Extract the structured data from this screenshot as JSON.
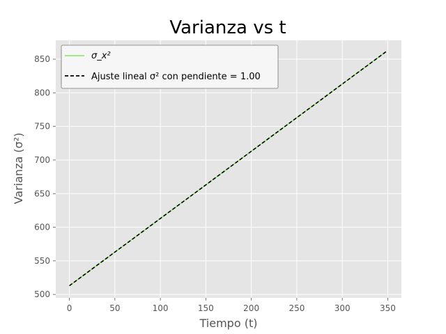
{
  "chart_data": {
    "type": "line",
    "title": "Varianza vs t",
    "xlabel": "Tiempo (t)",
    "ylabel": "Varianza (σ²)",
    "xlim": [
      -15,
      365
    ],
    "ylim": [
      495,
      878
    ],
    "xticks": [
      0,
      50,
      100,
      150,
      200,
      250,
      300,
      350
    ],
    "yticks": [
      500,
      550,
      600,
      650,
      700,
      750,
      800,
      850
    ],
    "grid": true,
    "legend_position": "upper-left",
    "background_color": "#e5e5e5",
    "series": [
      {
        "name": "σ_x²",
        "color": "#7ee85a",
        "style": "solid",
        "x": [
          0,
          50,
          100,
          150,
          200,
          250,
          300,
          348
        ],
        "y": [
          513,
          563,
          613,
          663,
          713,
          763,
          813,
          861
        ]
      },
      {
        "name": "Ajuste lineal σ² con pendiente = 1.00",
        "color": "#000000",
        "style": "dashed",
        "x": [
          0,
          348
        ],
        "y": [
          513,
          861
        ]
      }
    ]
  }
}
